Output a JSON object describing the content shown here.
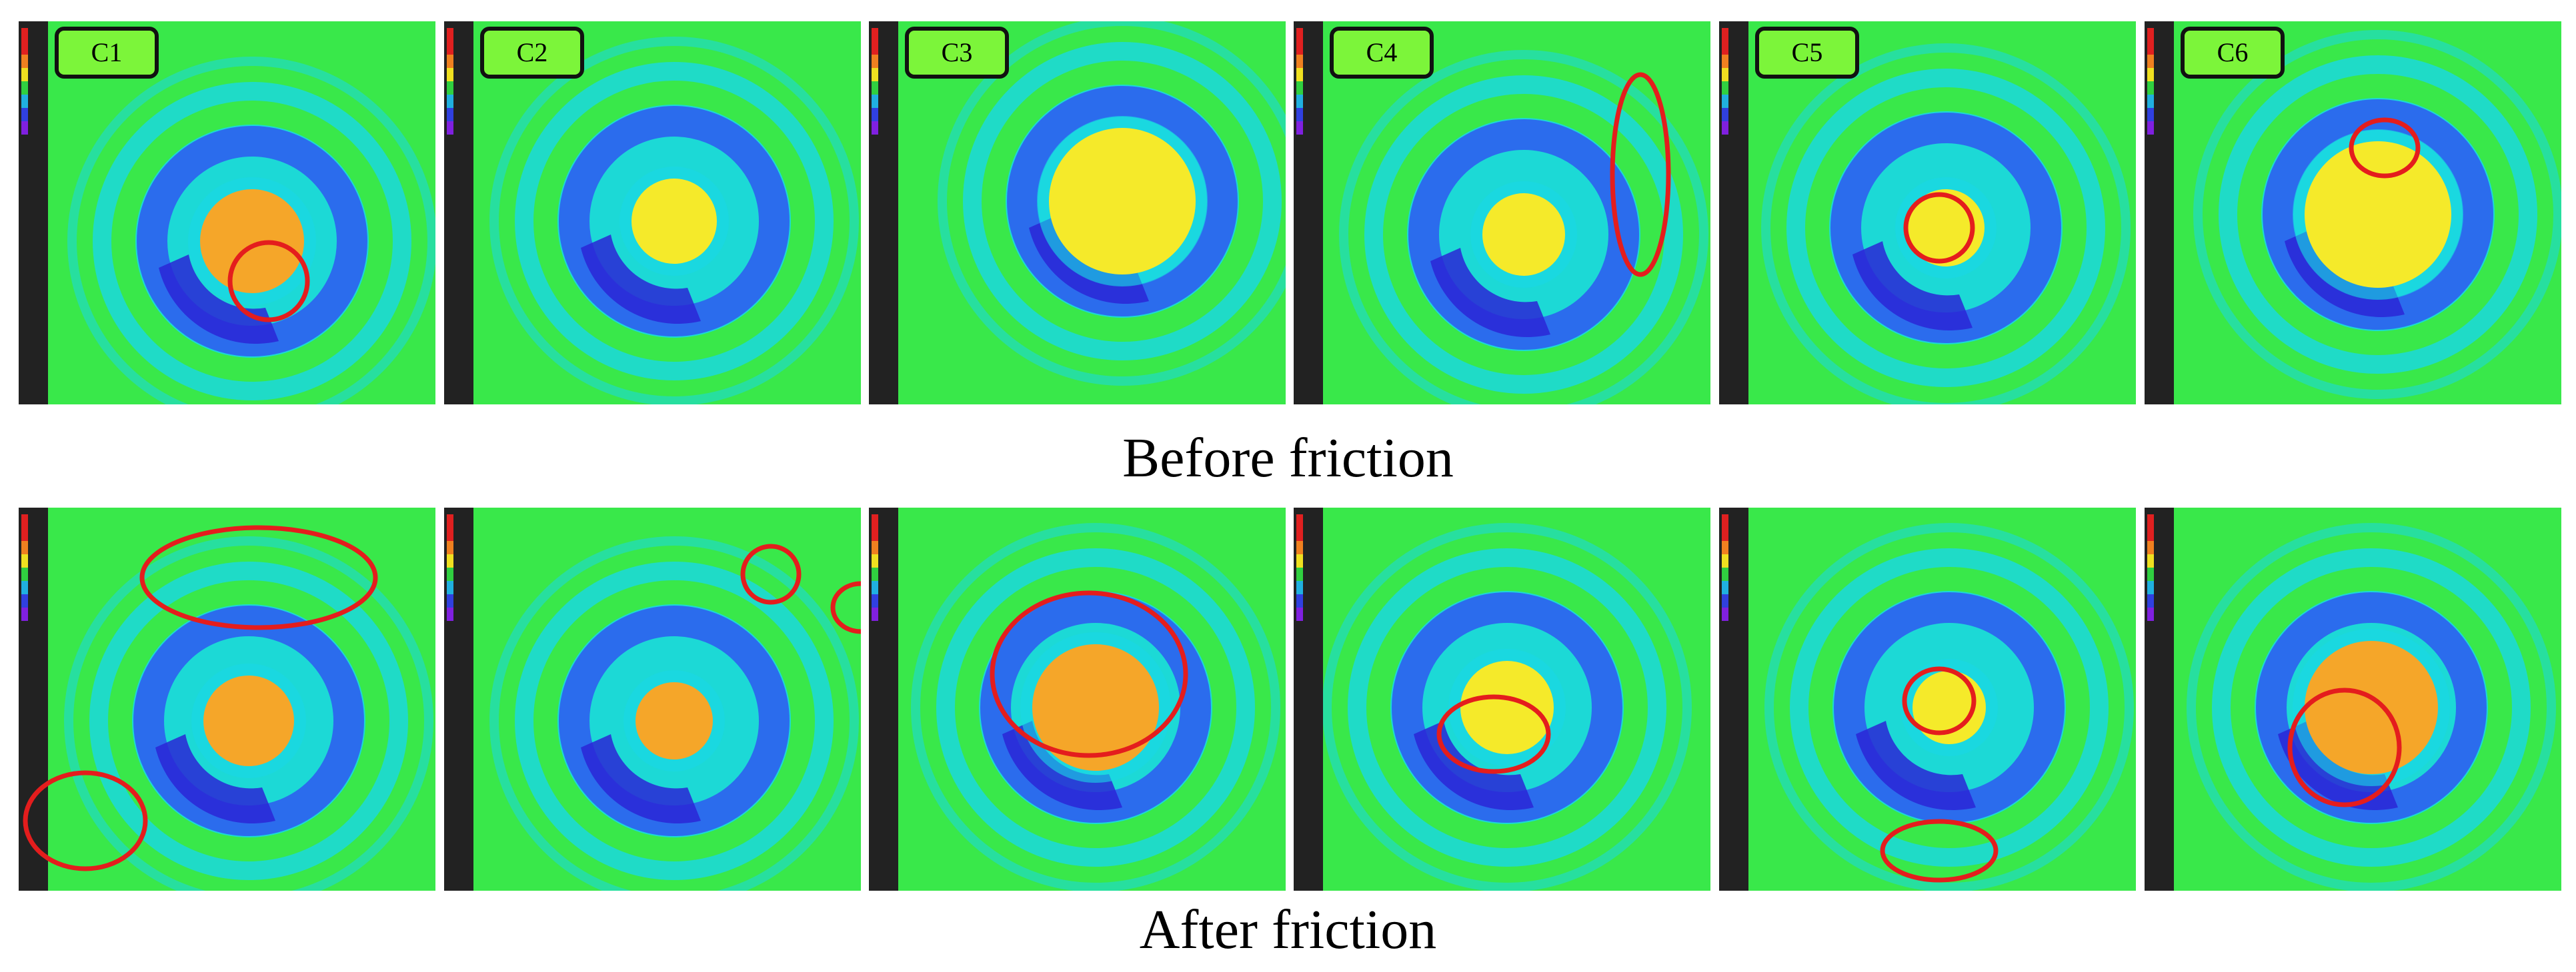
{
  "rows": [
    {
      "caption": "Before friction"
    },
    {
      "caption": "After friction"
    }
  ],
  "panel_labels": [
    "C1",
    "C2",
    "C3",
    "C4",
    "C5",
    "C6"
  ],
  "colors": {
    "background_green": "#39e84a",
    "ring_cyan": "#19d7e6",
    "ring_blue": "#2e5ff0",
    "dark_blue": "#2a26d6",
    "core_yellow": "#f5ea2a",
    "core_orange": "#f5a629",
    "annotation_red": "#e41d1d",
    "scale_bar": "#222222"
  },
  "icons": [
    "color-scale-bar"
  ]
}
